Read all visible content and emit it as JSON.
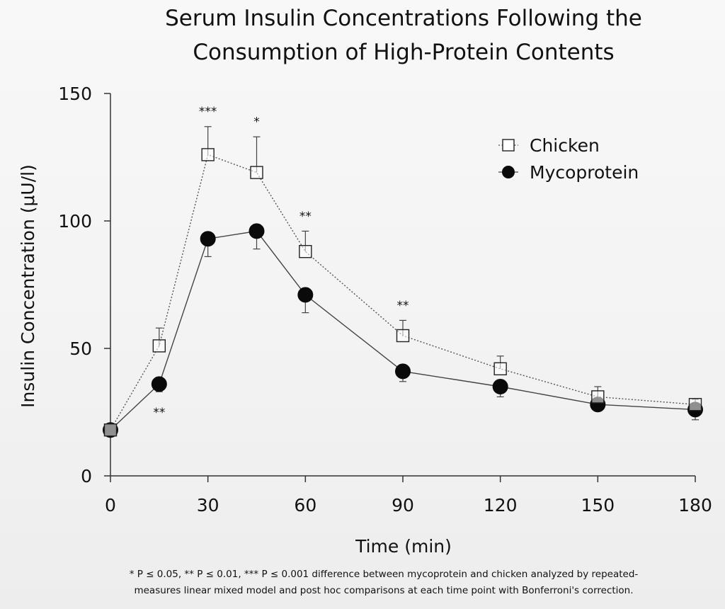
{
  "chart_data": {
    "type": "line",
    "title_lines": [
      "Serum Insulin Concentrations Following the",
      "Consumption of High-Protein Contents"
    ],
    "xlabel": "Time (min)",
    "ylabel": "Insulin Concentration (μU/l)",
    "x": [
      0,
      15,
      30,
      45,
      60,
      90,
      120,
      150,
      180
    ],
    "x_ticks": [
      0,
      30,
      60,
      90,
      120,
      150,
      180
    ],
    "y_ticks": [
      0,
      50,
      100,
      150
    ],
    "xlim": [
      0,
      180
    ],
    "ylim": [
      0,
      150
    ],
    "grid": false,
    "legend_position": "top-right",
    "series": [
      {
        "name": "Chicken",
        "marker": "open-square",
        "line_style": "dotted",
        "values": [
          18,
          51,
          126,
          119,
          88,
          55,
          42,
          31,
          28
        ],
        "error_upper": [
          null,
          58,
          137,
          133,
          96,
          61,
          47,
          35,
          30
        ]
      },
      {
        "name": "Mycoprotein",
        "marker": "filled-circle",
        "line_style": "solid",
        "values": [
          18,
          36,
          93,
          96,
          71,
          41,
          35,
          28,
          26
        ],
        "error_lower": [
          null,
          33,
          86,
          89,
          64,
          37,
          31,
          26,
          22
        ]
      }
    ],
    "annotations": [
      {
        "x": 15,
        "y": 25,
        "text": "**"
      },
      {
        "x": 30,
        "y": 143,
        "text": "***"
      },
      {
        "x": 45,
        "y": 139,
        "text": "*"
      },
      {
        "x": 60,
        "y": 102,
        "text": "**"
      },
      {
        "x": 90,
        "y": 67,
        "text": "**"
      }
    ],
    "footnote_lines": [
      "* P ≤ 0.05, ** P ≤ 0.01, *** P ≤ 0.001 difference between mycoprotein and chicken analyzed by repeated-",
      "measures linear mixed model and post hoc comparisons at each time point with Bonferroni's correction."
    ]
  }
}
